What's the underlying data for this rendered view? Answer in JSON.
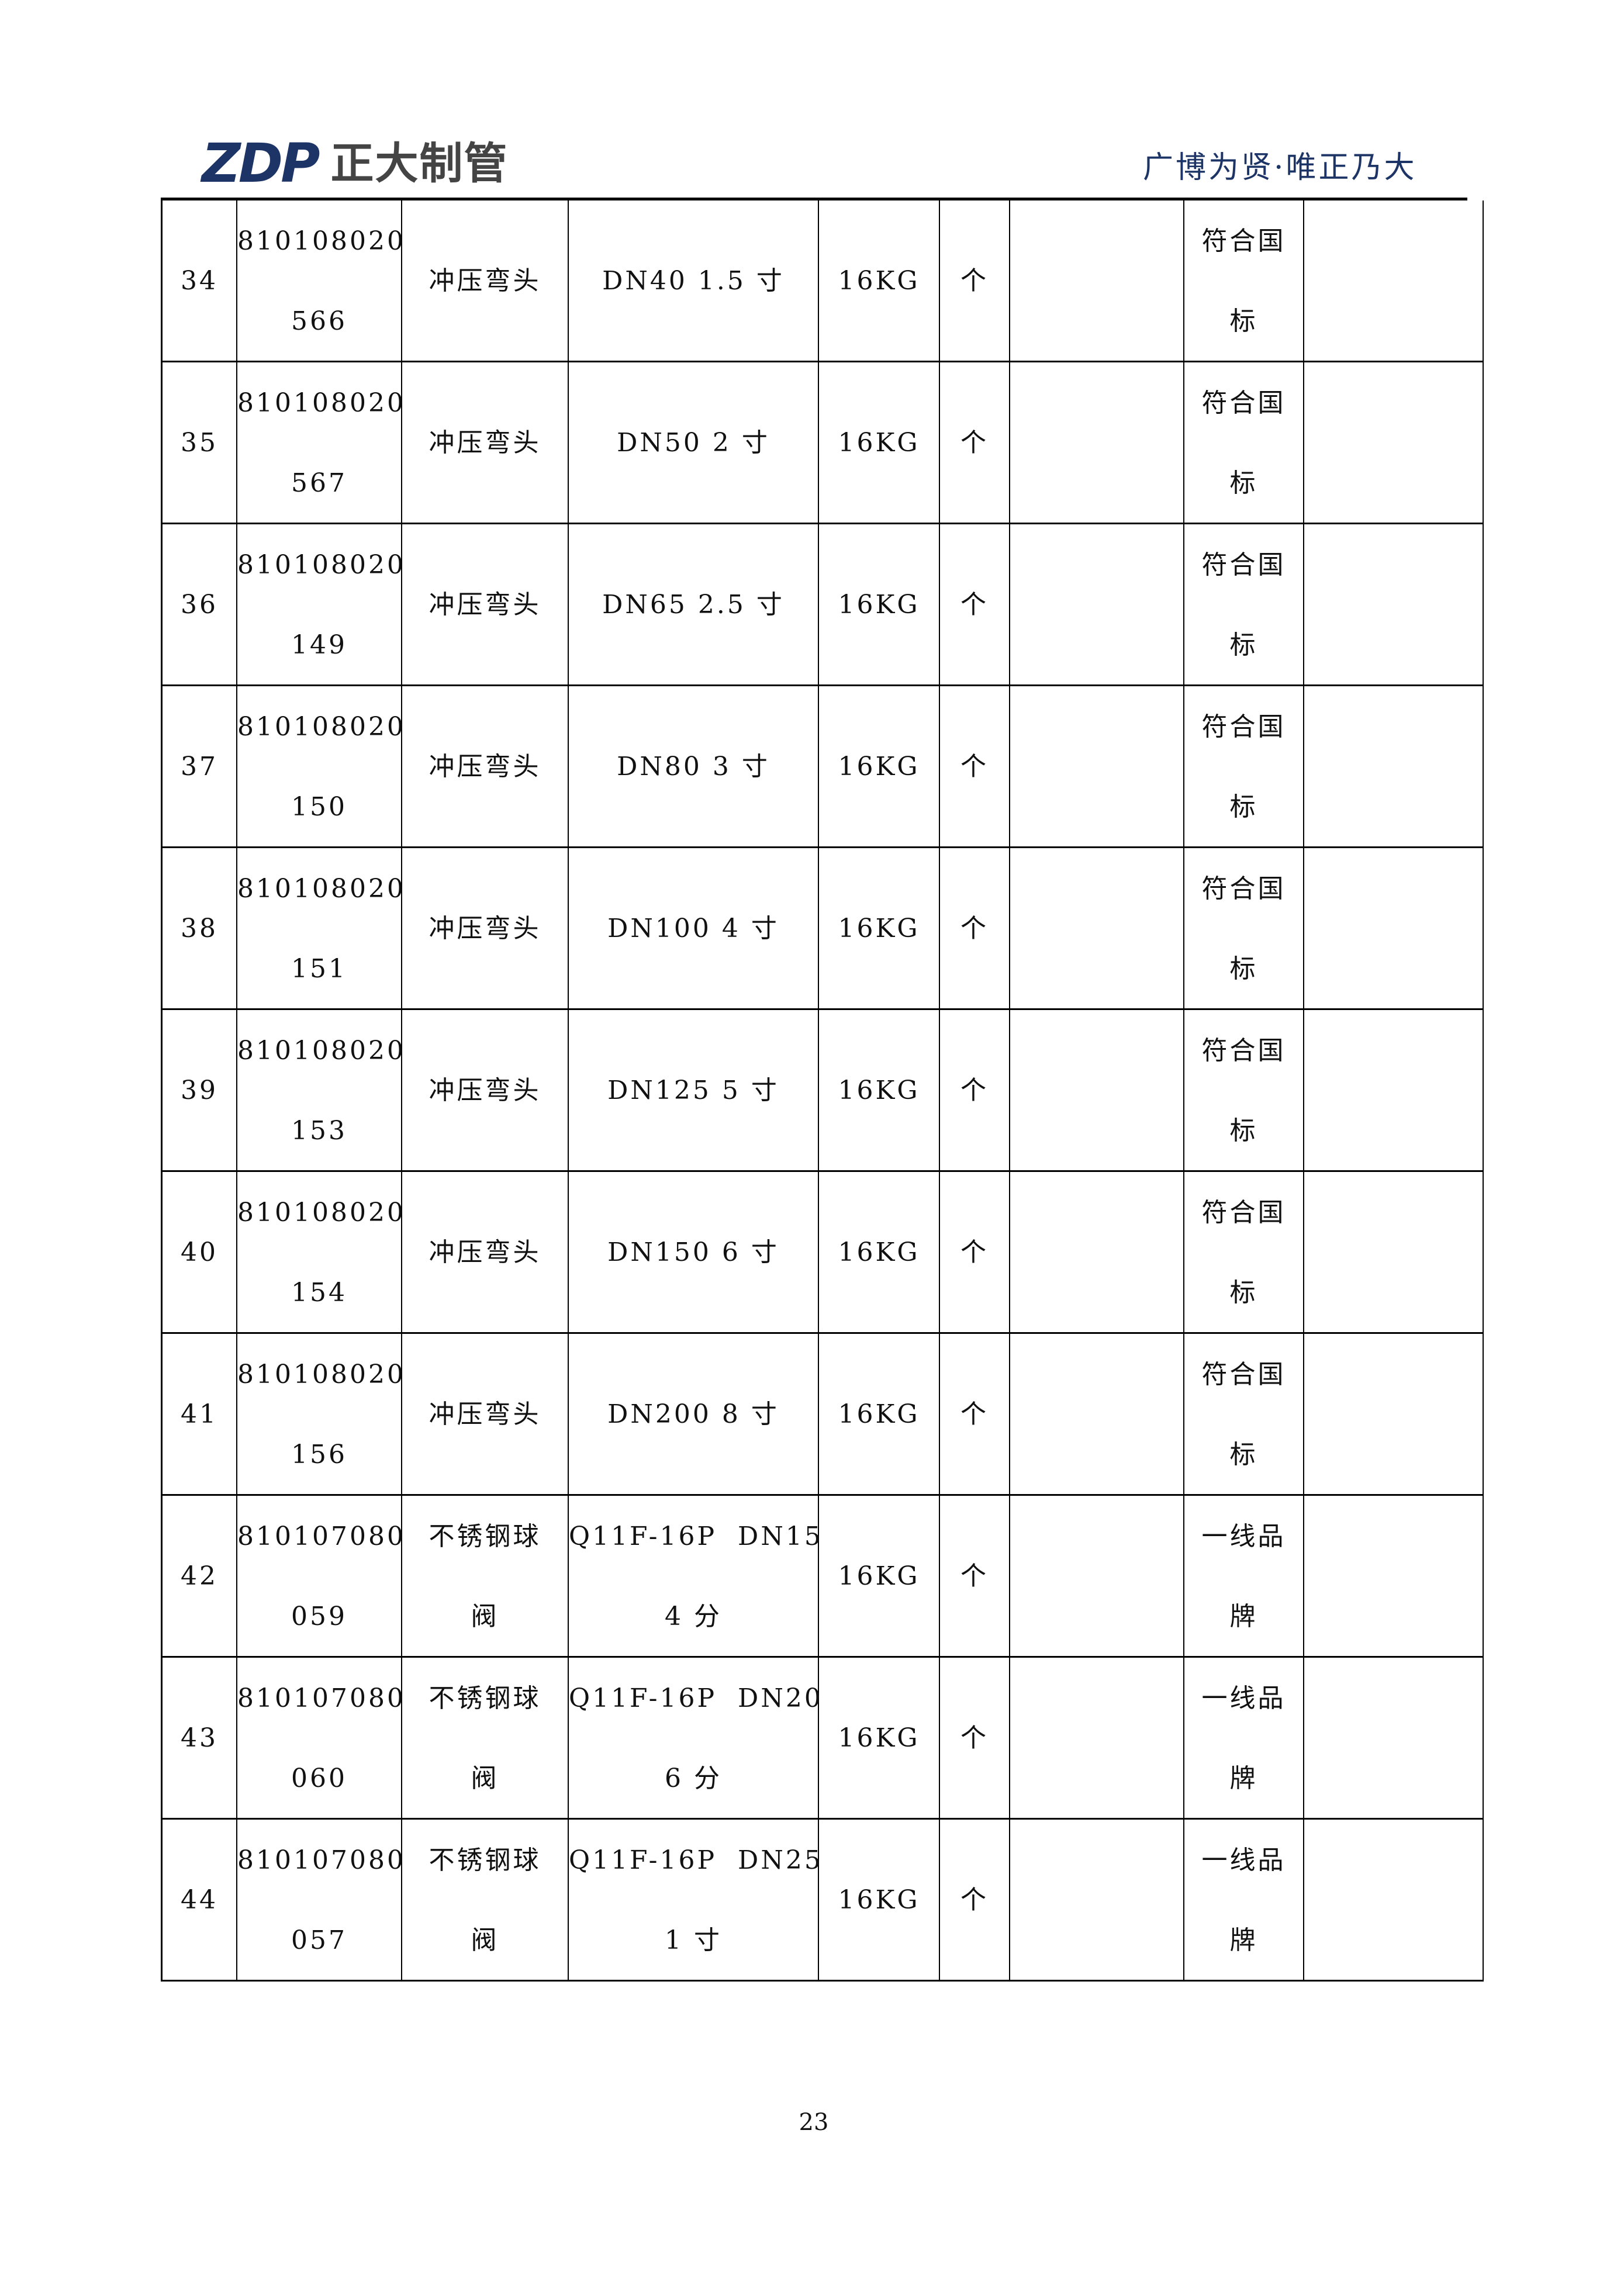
{
  "header": {
    "logo_mark": "ZDP",
    "logo_text": "正大制管",
    "slogan": "广博为贤·唯正乃大",
    "brand_color": "#1d3466"
  },
  "table": {
    "rows": [
      {
        "no": "34",
        "code": [
          "810108020",
          "566"
        ],
        "name": [
          "冲压弯头"
        ],
        "spec": [
          "DN40 1.5 寸"
        ],
        "pressure": "16KG",
        "unit": "个",
        "qty": "",
        "standard": [
          "符合国",
          "标"
        ],
        "remark": ""
      },
      {
        "no": "35",
        "code": [
          "810108020",
          "567"
        ],
        "name": [
          "冲压弯头"
        ],
        "spec": [
          "DN50 2 寸"
        ],
        "pressure": "16KG",
        "unit": "个",
        "qty": "",
        "standard": [
          "符合国",
          "标"
        ],
        "remark": ""
      },
      {
        "no": "36",
        "code": [
          "810108020",
          "149"
        ],
        "name": [
          "冲压弯头"
        ],
        "spec": [
          "DN65 2.5 寸"
        ],
        "pressure": "16KG",
        "unit": "个",
        "qty": "",
        "standard": [
          "符合国",
          "标"
        ],
        "remark": ""
      },
      {
        "no": "37",
        "code": [
          "810108020",
          "150"
        ],
        "name": [
          "冲压弯头"
        ],
        "spec": [
          "DN80 3 寸"
        ],
        "pressure": "16KG",
        "unit": "个",
        "qty": "",
        "standard": [
          "符合国",
          "标"
        ],
        "remark": ""
      },
      {
        "no": "38",
        "code": [
          "810108020",
          "151"
        ],
        "name": [
          "冲压弯头"
        ],
        "spec": [
          "DN100 4 寸"
        ],
        "pressure": "16KG",
        "unit": "个",
        "qty": "",
        "standard": [
          "符合国",
          "标"
        ],
        "remark": ""
      },
      {
        "no": "39",
        "code": [
          "810108020",
          "153"
        ],
        "name": [
          "冲压弯头"
        ],
        "spec": [
          "DN125 5 寸"
        ],
        "pressure": "16KG",
        "unit": "个",
        "qty": "",
        "standard": [
          "符合国",
          "标"
        ],
        "remark": ""
      },
      {
        "no": "40",
        "code": [
          "810108020",
          "154"
        ],
        "name": [
          "冲压弯头"
        ],
        "spec": [
          "DN150 6 寸"
        ],
        "pressure": "16KG",
        "unit": "个",
        "qty": "",
        "standard": [
          "符合国",
          "标"
        ],
        "remark": ""
      },
      {
        "no": "41",
        "code": [
          "810108020",
          "156"
        ],
        "name": [
          "冲压弯头"
        ],
        "spec": [
          "DN200 8 寸"
        ],
        "pressure": "16KG",
        "unit": "个",
        "qty": "",
        "standard": [
          "符合国",
          "标"
        ],
        "remark": ""
      },
      {
        "no": "42",
        "code": [
          "810107080",
          "059"
        ],
        "name": [
          "不锈钢球",
          "阀"
        ],
        "spec": [
          "Q11F-16P  DN15",
          "4 分"
        ],
        "pressure": "16KG",
        "unit": "个",
        "qty": "",
        "standard": [
          "一线品",
          "牌"
        ],
        "remark": ""
      },
      {
        "no": "43",
        "code": [
          "810107080",
          "060"
        ],
        "name": [
          "不锈钢球",
          "阀"
        ],
        "spec": [
          "Q11F-16P  DN20",
          "6 分"
        ],
        "pressure": "16KG",
        "unit": "个",
        "qty": "",
        "standard": [
          "一线品",
          "牌"
        ],
        "remark": ""
      },
      {
        "no": "44",
        "code": [
          "810107080",
          "057"
        ],
        "name": [
          "不锈钢球",
          "阀"
        ],
        "spec": [
          "Q11F-16P  DN25",
          "1 寸"
        ],
        "pressure": "16KG",
        "unit": "个",
        "qty": "",
        "standard": [
          "一线品",
          "牌"
        ],
        "remark": ""
      }
    ]
  },
  "footer": {
    "page_number": "23"
  }
}
